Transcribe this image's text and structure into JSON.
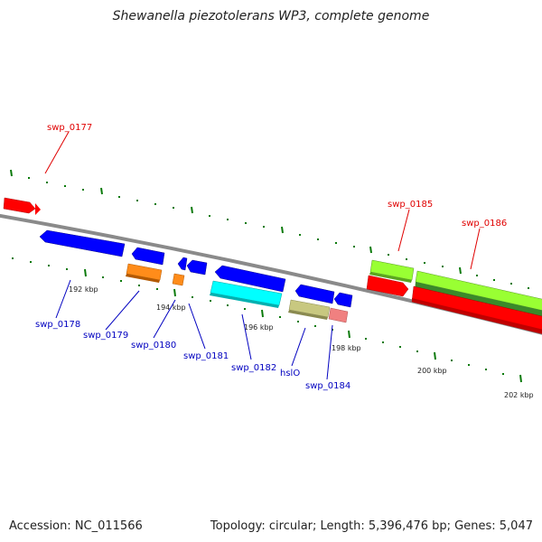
{
  "title": "Shewanella piezotolerans WP3, complete genome",
  "footer": {
    "accession": "Accession: NC_011566",
    "summary": "Topology: circular; Length: 5,396,476 bp; Genes: 5,047"
  },
  "colors": {
    "backbone": "#8a8a8a",
    "ticks": "#0a7a0a",
    "forward_label": "#e00000",
    "reverse_label": "#0000c0"
  },
  "kbp_labels": [
    "192 kbp",
    "194 kbp",
    "196 kbp",
    "198 kbp",
    "200 kbp",
    "202 kbp"
  ],
  "forward_gene_labels": [
    "swp_0177",
    "swp_0185",
    "swp_0186"
  ],
  "reverse_gene_labels": [
    "swp_0178",
    "swp_0179",
    "swp_0180",
    "swp_0181",
    "swp_0182",
    "hslO",
    "swp_0184"
  ]
}
